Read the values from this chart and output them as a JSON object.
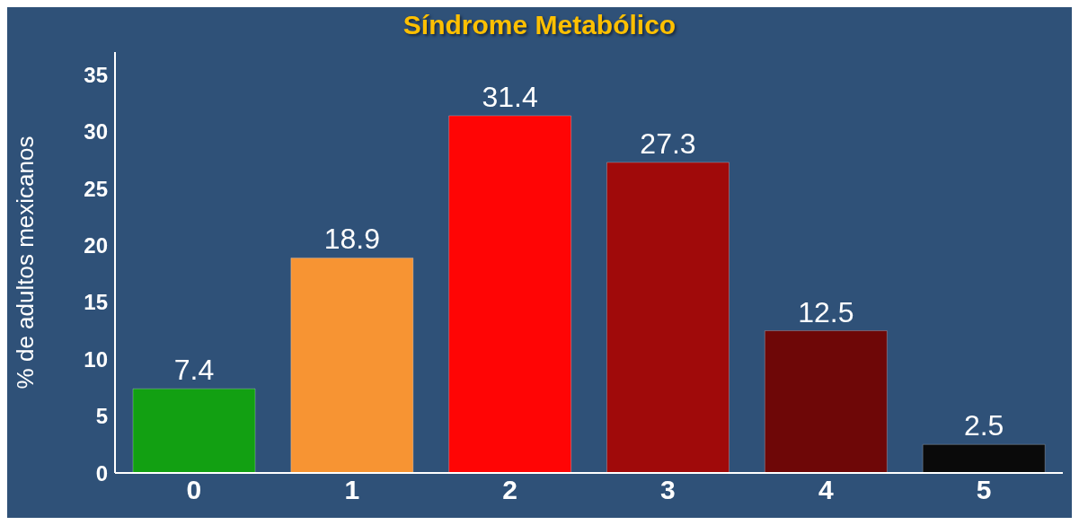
{
  "chart_data": {
    "type": "bar",
    "title": "Síndrome Metabólico",
    "ylabel": "% de adultos mexicanos",
    "categories": [
      "0",
      "1",
      "2",
      "3",
      "4",
      "5"
    ],
    "values": [
      7.4,
      18.9,
      31.4,
      27.3,
      12.5,
      2.5
    ],
    "colors": [
      "#12a012",
      "#f79433",
      "#ff0505",
      "#a00a0a",
      "#6e0707",
      "#0a0a0a"
    ],
    "ylim": [
      0,
      37
    ],
    "yticks": [
      0,
      5,
      10,
      15,
      20,
      25,
      30,
      35
    ],
    "grid": false,
    "data_labels": true
  }
}
